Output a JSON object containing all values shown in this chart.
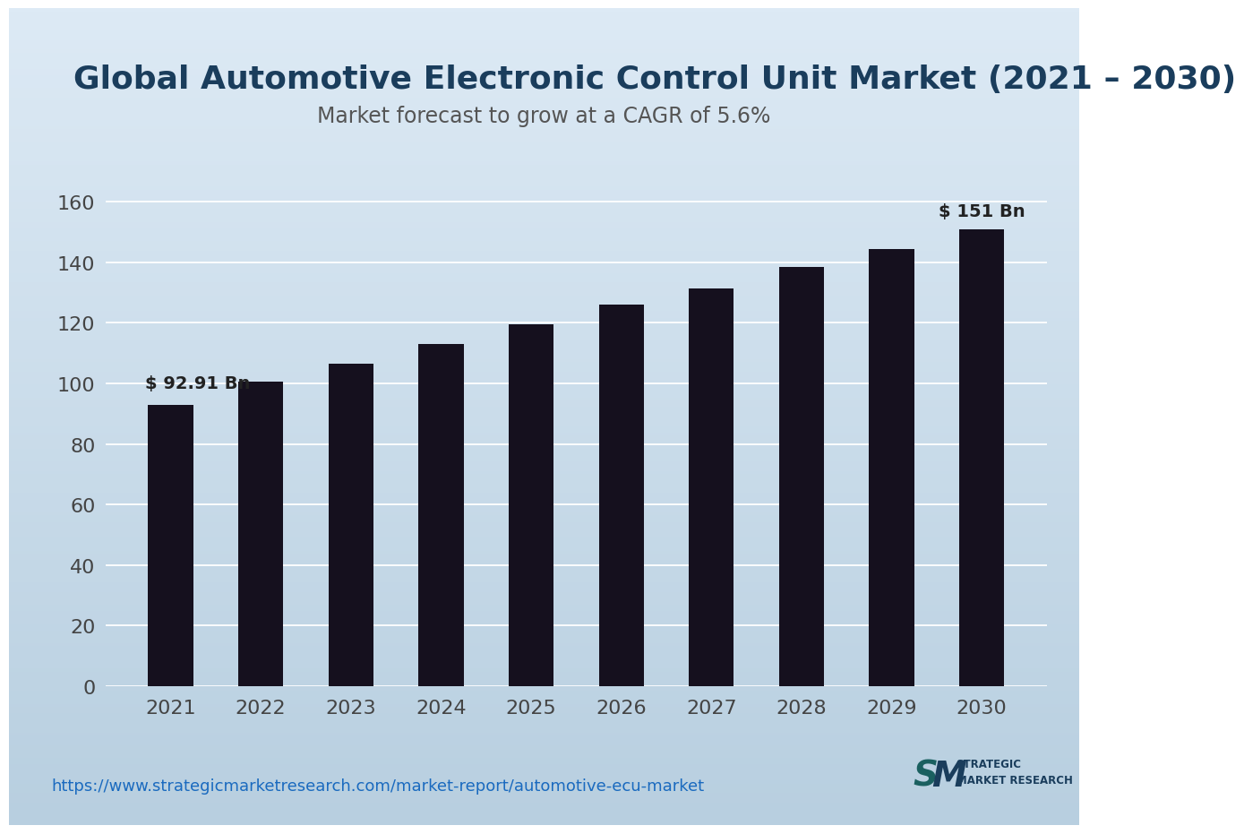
{
  "title": "Global Automotive Electronic Control Unit Market (2021 – 2030)",
  "subtitle": "Market forecast to grow at a CAGR of 5.6%",
  "years": [
    2021,
    2022,
    2023,
    2024,
    2025,
    2026,
    2027,
    2028,
    2029,
    2030
  ],
  "values": [
    92.91,
    100.5,
    106.5,
    113.0,
    119.5,
    126.0,
    131.5,
    138.5,
    144.5,
    151.0
  ],
  "bar_color": "#15101e",
  "annotation_first": "$ 92.91 Bn",
  "annotation_last": "$ 151 Bn",
  "yticks": [
    0,
    20,
    40,
    60,
    80,
    100,
    120,
    140,
    160
  ],
  "ylim": [
    0,
    170
  ],
  "url_text": "https://www.strategicmarketresearch.com/market-report/automotive-ecu-market",
  "bg_color_topleft": "#ddeaf5",
  "bg_color_bottomright": "#b8cfe0",
  "title_color": "#1a3d5c",
  "subtitle_color": "#555555",
  "tick_color": "#444444",
  "url_color": "#1a6abf",
  "grid_color": "#ffffff",
  "title_fontsize": 26,
  "subtitle_fontsize": 17,
  "tick_fontsize": 16,
  "annotation_fontsize": 14,
  "url_fontsize": 13,
  "bar_width": 0.5
}
